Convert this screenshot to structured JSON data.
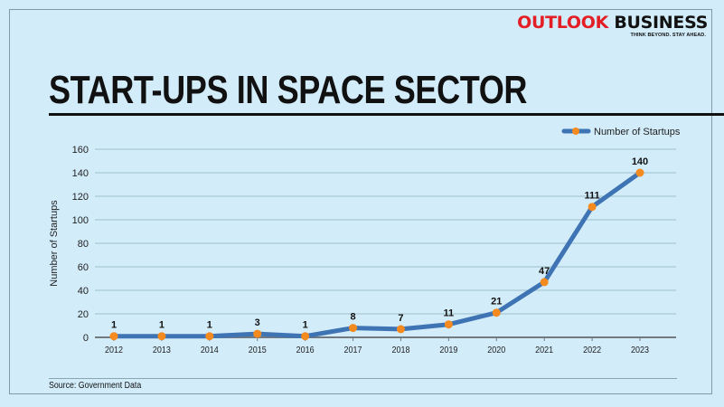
{
  "brand": {
    "name_part1": "OUTLOOK",
    "name_part2": "BUSINESS",
    "tagline": "THINK BEYOND. STAY AHEAD.",
    "colors": {
      "red": "#e31e24",
      "black": "#111111"
    }
  },
  "title": "START-UPS IN SPACE SECTOR",
  "source": "Source: Government Data",
  "chart_data": {
    "type": "line",
    "title": "START-UPS IN SPACE SECTOR",
    "xlabel": "",
    "ylabel": "Number of Startups",
    "x": [
      "2012",
      "2013",
      "2014",
      "2015",
      "2016",
      "2017",
      "2018",
      "2019",
      "2020",
      "2021",
      "2022",
      "2023"
    ],
    "series": [
      {
        "name": "Number of Startups",
        "values": [
          1,
          1,
          1,
          3,
          1,
          8,
          7,
          11,
          21,
          47,
          111,
          140
        ],
        "line_color": "#3f74b4",
        "marker_color": "#f58a1f"
      }
    ],
    "ylim": [
      0,
      160
    ],
    "yticks": [
      0,
      20,
      40,
      60,
      80,
      100,
      120,
      140,
      160
    ],
    "grid": true,
    "legend": "top-right",
    "data_labels": [
      "1",
      "1",
      "1",
      "3",
      "1",
      "8",
      "7",
      "11",
      "21",
      "47",
      "111",
      "140"
    ]
  }
}
